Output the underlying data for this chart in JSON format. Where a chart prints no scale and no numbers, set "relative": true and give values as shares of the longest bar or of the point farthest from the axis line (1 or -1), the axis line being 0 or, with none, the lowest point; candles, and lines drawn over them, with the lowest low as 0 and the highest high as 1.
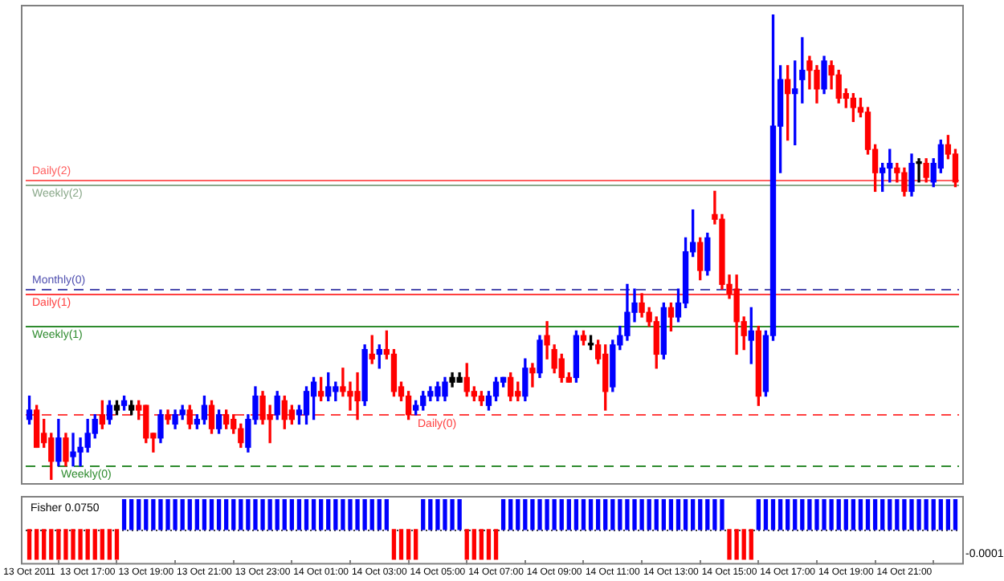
{
  "chart_data": [
    {
      "type": "candlestick",
      "relative": true,
      "categories": [
        null,
        null,
        null,
        null,
        null,
        null,
        null,
        null,
        null,
        null,
        null,
        null,
        null,
        null,
        null,
        null,
        null,
        null,
        null,
        null,
        null,
        null,
        null,
        null,
        null,
        null,
        null,
        null,
        null,
        null,
        null,
        null,
        null,
        null,
        null,
        null,
        null,
        null,
        null,
        null,
        null,
        null,
        null,
        null,
        null,
        null,
        null,
        null,
        null,
        null,
        null,
        null,
        null,
        null,
        null,
        null,
        null,
        null,
        null,
        null,
        null,
        null,
        null,
        null,
        null,
        null,
        null,
        null,
        null,
        null,
        null,
        null,
        null,
        null,
        null,
        null,
        null,
        null,
        null,
        null,
        null,
        null,
        null,
        null,
        null,
        null,
        null,
        null,
        null,
        null,
        null,
        null,
        null,
        null,
        null,
        null,
        null,
        null,
        null,
        null,
        null,
        null,
        null,
        null,
        null,
        null,
        null,
        null,
        null,
        null,
        null,
        null,
        null,
        null,
        null,
        null,
        null,
        null,
        null,
        null,
        null,
        null,
        null,
        null,
        null,
        null,
        null,
        null
      ],
      "ohlc": [
        [
          0.13,
          0.18,
          0.12,
          0.15
        ],
        [
          0.15,
          0.16,
          0.07,
          0.07
        ],
        [
          0.1,
          0.13,
          0.07,
          0.08
        ],
        [
          0.09,
          0.1,
          0,
          0.04
        ],
        [
          0.04,
          0.13,
          0.03,
          0.09
        ],
        [
          0.09,
          0.1,
          0.03,
          0.04
        ],
        [
          0.05,
          0.1,
          0.03,
          0.06
        ],
        [
          0.06,
          0.09,
          0.03,
          0.07
        ],
        [
          0.07,
          0.13,
          0.06,
          0.1
        ],
        [
          0.1,
          0.14,
          0.09,
          0.13
        ],
        [
          0.14,
          0.17,
          0.11,
          0.12
        ],
        [
          0.13,
          0.17,
          0.12,
          0.16
        ],
        [
          0.16,
          0.17,
          0.14,
          0.15
        ],
        [
          0.16,
          0.18,
          0.15,
          0.17
        ],
        [
          0.16,
          0.17,
          0.14,
          0.15
        ],
        [
          0.16,
          0.17,
          0.13,
          0.15
        ],
        [
          0.16,
          0.16,
          0.08,
          0.09
        ],
        [
          0.1,
          0.1,
          0.06,
          0.09
        ],
        [
          0.09,
          0.15,
          0.08,
          0.14
        ],
        [
          0.14,
          0.15,
          0.12,
          0.13
        ],
        [
          0.12,
          0.15,
          0.11,
          0.14
        ],
        [
          0.14,
          0.16,
          0.13,
          0.15
        ],
        [
          0.15,
          0.16,
          0.11,
          0.12
        ],
        [
          0.12,
          0.14,
          0.11,
          0.13
        ],
        [
          0.13,
          0.18,
          0.12,
          0.16
        ],
        [
          0.16,
          0.17,
          0.1,
          0.11
        ],
        [
          0.11,
          0.15,
          0.1,
          0.14
        ],
        [
          0.14,
          0.15,
          0.11,
          0.12
        ],
        [
          0.13,
          0.14,
          0.1,
          0.11
        ],
        [
          0.11,
          0.12,
          0.07,
          0.08
        ],
        [
          0.07,
          0.14,
          0.06,
          0.13
        ],
        [
          0.13,
          0.2,
          0.12,
          0.18
        ],
        [
          0.18,
          0.19,
          0.12,
          0.13
        ],
        [
          0.14,
          0.16,
          0.08,
          0.13
        ],
        [
          0.14,
          0.19,
          0.13,
          0.18
        ],
        [
          0.17,
          0.18,
          0.11,
          0.13
        ],
        [
          0.15,
          0.16,
          0.12,
          0.13
        ],
        [
          0.14,
          0.16,
          0.12,
          0.15
        ],
        [
          0.14,
          0.2,
          0.12,
          0.19
        ],
        [
          0.18,
          0.22,
          0.13,
          0.21
        ],
        [
          0.19,
          0.22,
          0.17,
          0.18
        ],
        [
          0.18,
          0.23,
          0.17,
          0.2
        ],
        [
          0.19,
          0.21,
          0.17,
          0.2
        ],
        [
          0.2,
          0.24,
          0.18,
          0.19
        ],
        [
          0.19,
          0.21,
          0.15,
          0.18
        ],
        [
          0.19,
          0.23,
          0.13,
          0.17
        ],
        [
          0.17,
          0.29,
          0.16,
          0.28
        ],
        [
          0.27,
          0.31,
          0.25,
          0.26
        ],
        [
          0.27,
          0.29,
          0.24,
          0.28
        ],
        [
          0.28,
          0.32,
          0.26,
          0.27
        ],
        [
          0.27,
          0.28,
          0.18,
          0.19
        ],
        [
          0.2,
          0.21,
          0.17,
          0.18
        ],
        [
          0.18,
          0.19,
          0.13,
          0.14
        ],
        [
          0.15,
          0.17,
          0.14,
          0.16
        ],
        [
          0.16,
          0.19,
          0.15,
          0.18
        ],
        [
          0.18,
          0.2,
          0.17,
          0.19
        ],
        [
          0.18,
          0.21,
          0.17,
          0.2
        ],
        [
          0.18,
          0.22,
          0.17,
          0.21
        ],
        [
          0.22,
          0.23,
          0.2,
          0.21
        ],
        [
          0.22,
          0.23,
          0.21,
          0.21
        ],
        [
          0.22,
          0.25,
          0.18,
          0.19
        ],
        [
          0.19,
          0.2,
          0.17,
          0.18
        ],
        [
          0.18,
          0.19,
          0.16,
          0.17
        ],
        [
          0.16,
          0.19,
          0.15,
          0.18
        ],
        [
          0.18,
          0.22,
          0.17,
          0.21
        ],
        [
          0.21,
          0.22,
          0.2,
          0.22
        ],
        [
          0.22,
          0.23,
          0.17,
          0.18
        ],
        [
          0.19,
          0.21,
          0.17,
          0.18
        ],
        [
          0.18,
          0.26,
          0.17,
          0.24
        ],
        [
          0.24,
          0.25,
          0.2,
          0.23
        ],
        [
          0.23,
          0.31,
          0.22,
          0.3
        ],
        [
          0.31,
          0.34,
          0.26,
          0.29
        ],
        [
          0.28,
          0.29,
          0.23,
          0.24
        ],
        [
          0.26,
          0.27,
          0.21,
          0.22
        ],
        [
          0.22,
          0.23,
          0.21,
          0.21
        ],
        [
          0.22,
          0.32,
          0.21,
          0.31
        ],
        [
          0.31,
          0.32,
          0.29,
          0.3
        ],
        [
          0.29,
          0.31,
          0.28,
          0.29
        ],
        [
          0.29,
          0.3,
          0.25,
          0.26
        ],
        [
          0.27,
          0.29,
          0.15,
          0.19
        ],
        [
          0.2,
          0.3,
          0.19,
          0.29
        ],
        [
          0.29,
          0.33,
          0.28,
          0.31
        ],
        [
          0.31,
          0.42,
          0.3,
          0.36
        ],
        [
          0.36,
          0.41,
          0.34,
          0.38
        ],
        [
          0.38,
          0.4,
          0.35,
          0.36
        ],
        [
          0.36,
          0.37,
          0.33,
          0.34
        ],
        [
          0.34,
          0.35,
          0.24,
          0.27
        ],
        [
          0.27,
          0.38,
          0.26,
          0.37
        ],
        [
          0.37,
          0.38,
          0.32,
          0.35
        ],
        [
          0.35,
          0.41,
          0.34,
          0.38
        ],
        [
          0.38,
          0.52,
          0.37,
          0.49
        ],
        [
          0.49,
          0.58,
          0.48,
          0.51
        ],
        [
          0.51,
          0.52,
          0.43,
          0.45
        ],
        [
          0.45,
          0.53,
          0.44,
          0.52
        ],
        [
          0.57,
          0.62,
          0.55,
          0.56
        ],
        [
          0.56,
          0.57,
          0.41,
          0.42
        ],
        [
          0.42,
          0.44,
          0.39,
          0.4
        ],
        [
          0.41,
          0.44,
          0.27,
          0.34
        ],
        [
          0.34,
          0.35,
          0.28,
          0.31
        ],
        [
          0.3,
          0.37,
          0.25,
          0.32
        ],
        [
          0.32,
          0.33,
          0.16,
          0.18
        ],
        [
          0.19,
          0.32,
          0.18,
          0.31
        ],
        [
          0.31,
          1.0,
          0.3,
          0.76
        ],
        [
          0.76,
          0.89,
          0.66,
          0.86
        ],
        [
          0.86,
          0.89,
          0.73,
          0.83
        ],
        [
          0.83,
          0.9,
          0.72,
          0.84
        ],
        [
          0.86,
          0.95,
          0.81,
          0.88
        ],
        [
          0.9,
          0.91,
          0.84,
          0.88
        ],
        [
          0.88,
          0.89,
          0.81,
          0.84
        ],
        [
          0.84,
          0.91,
          0.83,
          0.9
        ],
        [
          0.89,
          0.9,
          0.84,
          0.87
        ],
        [
          0.87,
          0.88,
          0.81,
          0.82
        ],
        [
          0.83,
          0.84,
          0.8,
          0.82
        ],
        [
          0.82,
          0.83,
          0.77,
          0.8
        ],
        [
          0.8,
          0.82,
          0.78,
          0.79
        ],
        [
          0.79,
          0.8,
          0.7,
          0.71
        ],
        [
          0.71,
          0.72,
          0.62,
          0.66
        ],
        [
          0.66,
          0.68,
          0.62,
          0.67
        ],
        [
          0.67,
          0.71,
          0.64,
          0.68
        ],
        [
          0.67,
          0.68,
          0.64,
          0.66
        ],
        [
          0.66,
          0.67,
          0.61,
          0.62
        ],
        [
          0.62,
          0.7,
          0.61,
          0.68
        ],
        [
          0.68,
          0.69,
          0.64,
          0.68
        ],
        [
          0.68,
          0.69,
          0.64,
          0.65
        ],
        [
          0.64,
          0.69,
          0.63,
          0.68
        ],
        [
          0.67,
          0.73,
          0.66,
          0.72
        ],
        [
          0.72,
          0.74,
          0.69,
          0.7
        ],
        [
          0.7,
          0.71,
          0.63,
          0.64
        ]
      ],
      "colors": [
        "#0000ff",
        "#ff0000",
        "#ff0000",
        "#ff0000",
        "#0000ff",
        "#ff0000",
        "#0000ff",
        "#0000ff",
        "#0000ff",
        "#0000ff",
        "#ff0000",
        "#0000ff",
        "#000000",
        "#0000ff",
        "#000000",
        "#ff0000",
        "#ff0000",
        "#ff0000",
        "#0000ff",
        "#ff0000",
        "#0000ff",
        "#0000ff",
        "#ff0000",
        "#0000ff",
        "#0000ff",
        "#ff0000",
        "#0000ff",
        "#ff0000",
        "#ff0000",
        "#ff0000",
        "#0000ff",
        "#0000ff",
        "#ff0000",
        "#ff0000",
        "#0000ff",
        "#ff0000",
        "#ff0000",
        "#0000ff",
        "#0000ff",
        "#0000ff",
        "#ff0000",
        "#0000ff",
        "#0000ff",
        "#ff0000",
        "#ff0000",
        "#ff0000",
        "#0000ff",
        "#ff0000",
        "#0000ff",
        "#ff0000",
        "#ff0000",
        "#ff0000",
        "#ff0000",
        "#0000ff",
        "#0000ff",
        "#0000ff",
        "#0000ff",
        "#0000ff",
        "#000000",
        "#000000",
        "#ff0000",
        "#ff0000",
        "#ff0000",
        "#0000ff",
        "#0000ff",
        "#0000ff",
        "#ff0000",
        "#ff0000",
        "#0000ff",
        "#ff0000",
        "#0000ff",
        "#ff0000",
        "#ff0000",
        "#ff0000",
        "#ff0000",
        "#0000ff",
        "#ff0000",
        "#000000",
        "#ff0000",
        "#ff0000",
        "#0000ff",
        "#0000ff",
        "#0000ff",
        "#0000ff",
        "#ff0000",
        "#ff0000",
        "#ff0000",
        "#0000ff",
        "#ff0000",
        "#0000ff",
        "#0000ff",
        "#0000ff",
        "#ff0000",
        "#0000ff",
        "#ff0000",
        "#ff0000",
        "#ff0000",
        "#ff0000",
        "#ff0000",
        "#0000ff",
        "#ff0000",
        "#0000ff",
        "#0000ff",
        "#0000ff",
        "#ff0000",
        "#0000ff",
        "#0000ff",
        "#ff0000",
        "#ff0000",
        "#0000ff",
        "#ff0000",
        "#ff0000",
        "#ff0000",
        "#ff0000",
        "#ff0000",
        "#ff0000",
        "#ff0000",
        "#0000ff",
        "#0000ff",
        "#ff0000",
        "#ff0000",
        "#0000ff",
        "#000000",
        "#ff0000",
        "#0000ff",
        "#0000ff",
        "#ff0000",
        "#ff0000"
      ],
      "ref_lines": [
        {
          "axis": "y",
          "value": 0.645,
          "label": "Daily(2)",
          "color": "#ff6060",
          "line_style": "solid"
        },
        {
          "axis": "y",
          "value": 0.635,
          "label": "Weekly(2)",
          "color": "#8aa88a",
          "line_style": "solid"
        },
        {
          "axis": "y",
          "value": 0.41,
          "label": "Monthly(0)",
          "color": "#5050b0",
          "line_style": "dashed"
        },
        {
          "axis": "y",
          "value": 0.4,
          "label": "Daily(1)",
          "color": "#ff4040",
          "line_style": "solid"
        },
        {
          "axis": "y",
          "value": 0.33,
          "label": "Weekly(1)",
          "color": "#2e8b2e",
          "line_style": "solid"
        },
        {
          "axis": "y",
          "value": 0.14,
          "label": "Daily(0)",
          "color": "#ff4040",
          "line_style": "dashed"
        },
        {
          "axis": "y",
          "value": 0.03,
          "label": "Weekly(0)",
          "color": "#2e8b2e",
          "line_style": "dashed"
        }
      ]
    },
    {
      "type": "bar",
      "relative": true,
      "title": "Fisher 0.0750",
      "annotations": [
        "-0.0001"
      ],
      "ref_lines": [
        {
          "axis": "y",
          "value": 0,
          "color": "#404040",
          "line_style": "dotted"
        }
      ],
      "categories": [
        "13 Oct 2011",
        null,
        null,
        null,
        null,
        null,
        null,
        null,
        "13 Oct 17:00",
        null,
        null,
        null,
        null,
        null,
        null,
        null,
        "13 Oct 19:00",
        null,
        null,
        null,
        null,
        null,
        null,
        null,
        "13 Oct 21:00",
        null,
        null,
        null,
        null,
        null,
        null,
        null,
        "13 Oct 23:00",
        null,
        null,
        null,
        null,
        null,
        null,
        null,
        "14 Oct 01:00",
        null,
        null,
        null,
        null,
        null,
        null,
        null,
        "14 Oct 03:00",
        null,
        null,
        null,
        null,
        null,
        null,
        null,
        "14 Oct 05:00",
        null,
        null,
        null,
        null,
        null,
        null,
        null,
        "14 Oct 07:00",
        null,
        null,
        null,
        null,
        null,
        null,
        null,
        "14 Oct 09:00",
        null,
        null,
        null,
        null,
        null,
        null,
        null,
        "14 Oct 11:00",
        null,
        null,
        null,
        null,
        null,
        null,
        null,
        "14 Oct 13:00",
        null,
        null,
        null,
        null,
        null,
        null,
        null,
        "14 Oct 15:00",
        null,
        null,
        null,
        null,
        null,
        null,
        null,
        "14 Oct 17:00",
        null,
        null,
        null,
        null,
        null,
        null,
        null,
        "14 Oct 19:00",
        null,
        null,
        null,
        null,
        null,
        null,
        null,
        "14 Oct 21:00",
        null,
        null,
        null,
        null,
        null,
        null,
        null
      ],
      "values": [
        -1,
        -1,
        -1,
        -1,
        -1,
        -1,
        -1,
        -1,
        -1,
        -1,
        -1,
        -1,
        -1,
        1,
        1,
        1,
        1,
        1,
        1,
        1,
        1,
        1,
        1,
        1,
        1,
        1,
        1,
        1,
        1,
        1,
        1,
        1,
        1,
        1,
        1,
        1,
        1,
        1,
        1,
        1,
        1,
        1,
        1,
        1,
        1,
        1,
        1,
        1,
        1,
        1,
        -1,
        -1,
        -1,
        -1,
        1,
        1,
        1,
        1,
        1,
        1,
        -1,
        -1,
        -1,
        -1,
        -1,
        1,
        1,
        1,
        1,
        1,
        1,
        1,
        1,
        1,
        1,
        1,
        1,
        1,
        1,
        1,
        1,
        1,
        1,
        1,
        1,
        1,
        1,
        1,
        1,
        1,
        1,
        1,
        1,
        1,
        1,
        1,
        -1,
        -1,
        -1,
        -1,
        1,
        1,
        1,
        1,
        1,
        1,
        1,
        1,
        1,
        1,
        1,
        1,
        1,
        1,
        1,
        1,
        1,
        1,
        1,
        1,
        1,
        1,
        1,
        1,
        1,
        1,
        1,
        1
      ],
      "colors": [
        "#ff0000",
        "#ff0000",
        "#ff0000",
        "#ff0000",
        "#ff0000",
        "#ff0000",
        "#ff0000",
        "#ff0000",
        "#ff0000",
        "#ff0000",
        "#ff0000",
        "#ff0000",
        "#ff0000",
        "#0000ff",
        "#0000ff",
        "#0000ff",
        "#0000ff",
        "#0000ff",
        "#0000ff",
        "#0000ff",
        "#0000ff",
        "#0000ff",
        "#0000ff",
        "#0000ff",
        "#0000ff",
        "#0000ff",
        "#0000ff",
        "#0000ff",
        "#0000ff",
        "#0000ff",
        "#0000ff",
        "#0000ff",
        "#0000ff",
        "#0000ff",
        "#0000ff",
        "#0000ff",
        "#0000ff",
        "#0000ff",
        "#0000ff",
        "#0000ff",
        "#0000ff",
        "#0000ff",
        "#0000ff",
        "#0000ff",
        "#0000ff",
        "#0000ff",
        "#0000ff",
        "#0000ff",
        "#0000ff",
        "#0000ff",
        "#ff0000",
        "#ff0000",
        "#ff0000",
        "#ff0000",
        "#0000ff",
        "#0000ff",
        "#0000ff",
        "#0000ff",
        "#0000ff",
        "#0000ff",
        "#ff0000",
        "#ff0000",
        "#ff0000",
        "#ff0000",
        "#ff0000",
        "#0000ff",
        "#0000ff",
        "#0000ff",
        "#0000ff",
        "#0000ff",
        "#0000ff",
        "#0000ff",
        "#0000ff",
        "#0000ff",
        "#0000ff",
        "#0000ff",
        "#0000ff",
        "#0000ff",
        "#0000ff",
        "#0000ff",
        "#0000ff",
        "#0000ff",
        "#0000ff",
        "#0000ff",
        "#0000ff",
        "#0000ff",
        "#0000ff",
        "#0000ff",
        "#0000ff",
        "#0000ff",
        "#0000ff",
        "#0000ff",
        "#0000ff",
        "#0000ff",
        "#0000ff",
        "#0000ff",
        "#ff0000",
        "#ff0000",
        "#ff0000",
        "#ff0000",
        "#0000ff",
        "#0000ff",
        "#0000ff",
        "#0000ff",
        "#0000ff",
        "#0000ff",
        "#0000ff",
        "#0000ff",
        "#0000ff",
        "#0000ff",
        "#0000ff",
        "#0000ff",
        "#0000ff",
        "#0000ff",
        "#0000ff",
        "#0000ff",
        "#0000ff",
        "#0000ff",
        "#0000ff",
        "#0000ff",
        "#0000ff",
        "#0000ff",
        "#0000ff",
        "#0000ff",
        "#0000ff",
        "#0000ff",
        "#0000ff",
        "#0000ff"
      ]
    }
  ]
}
